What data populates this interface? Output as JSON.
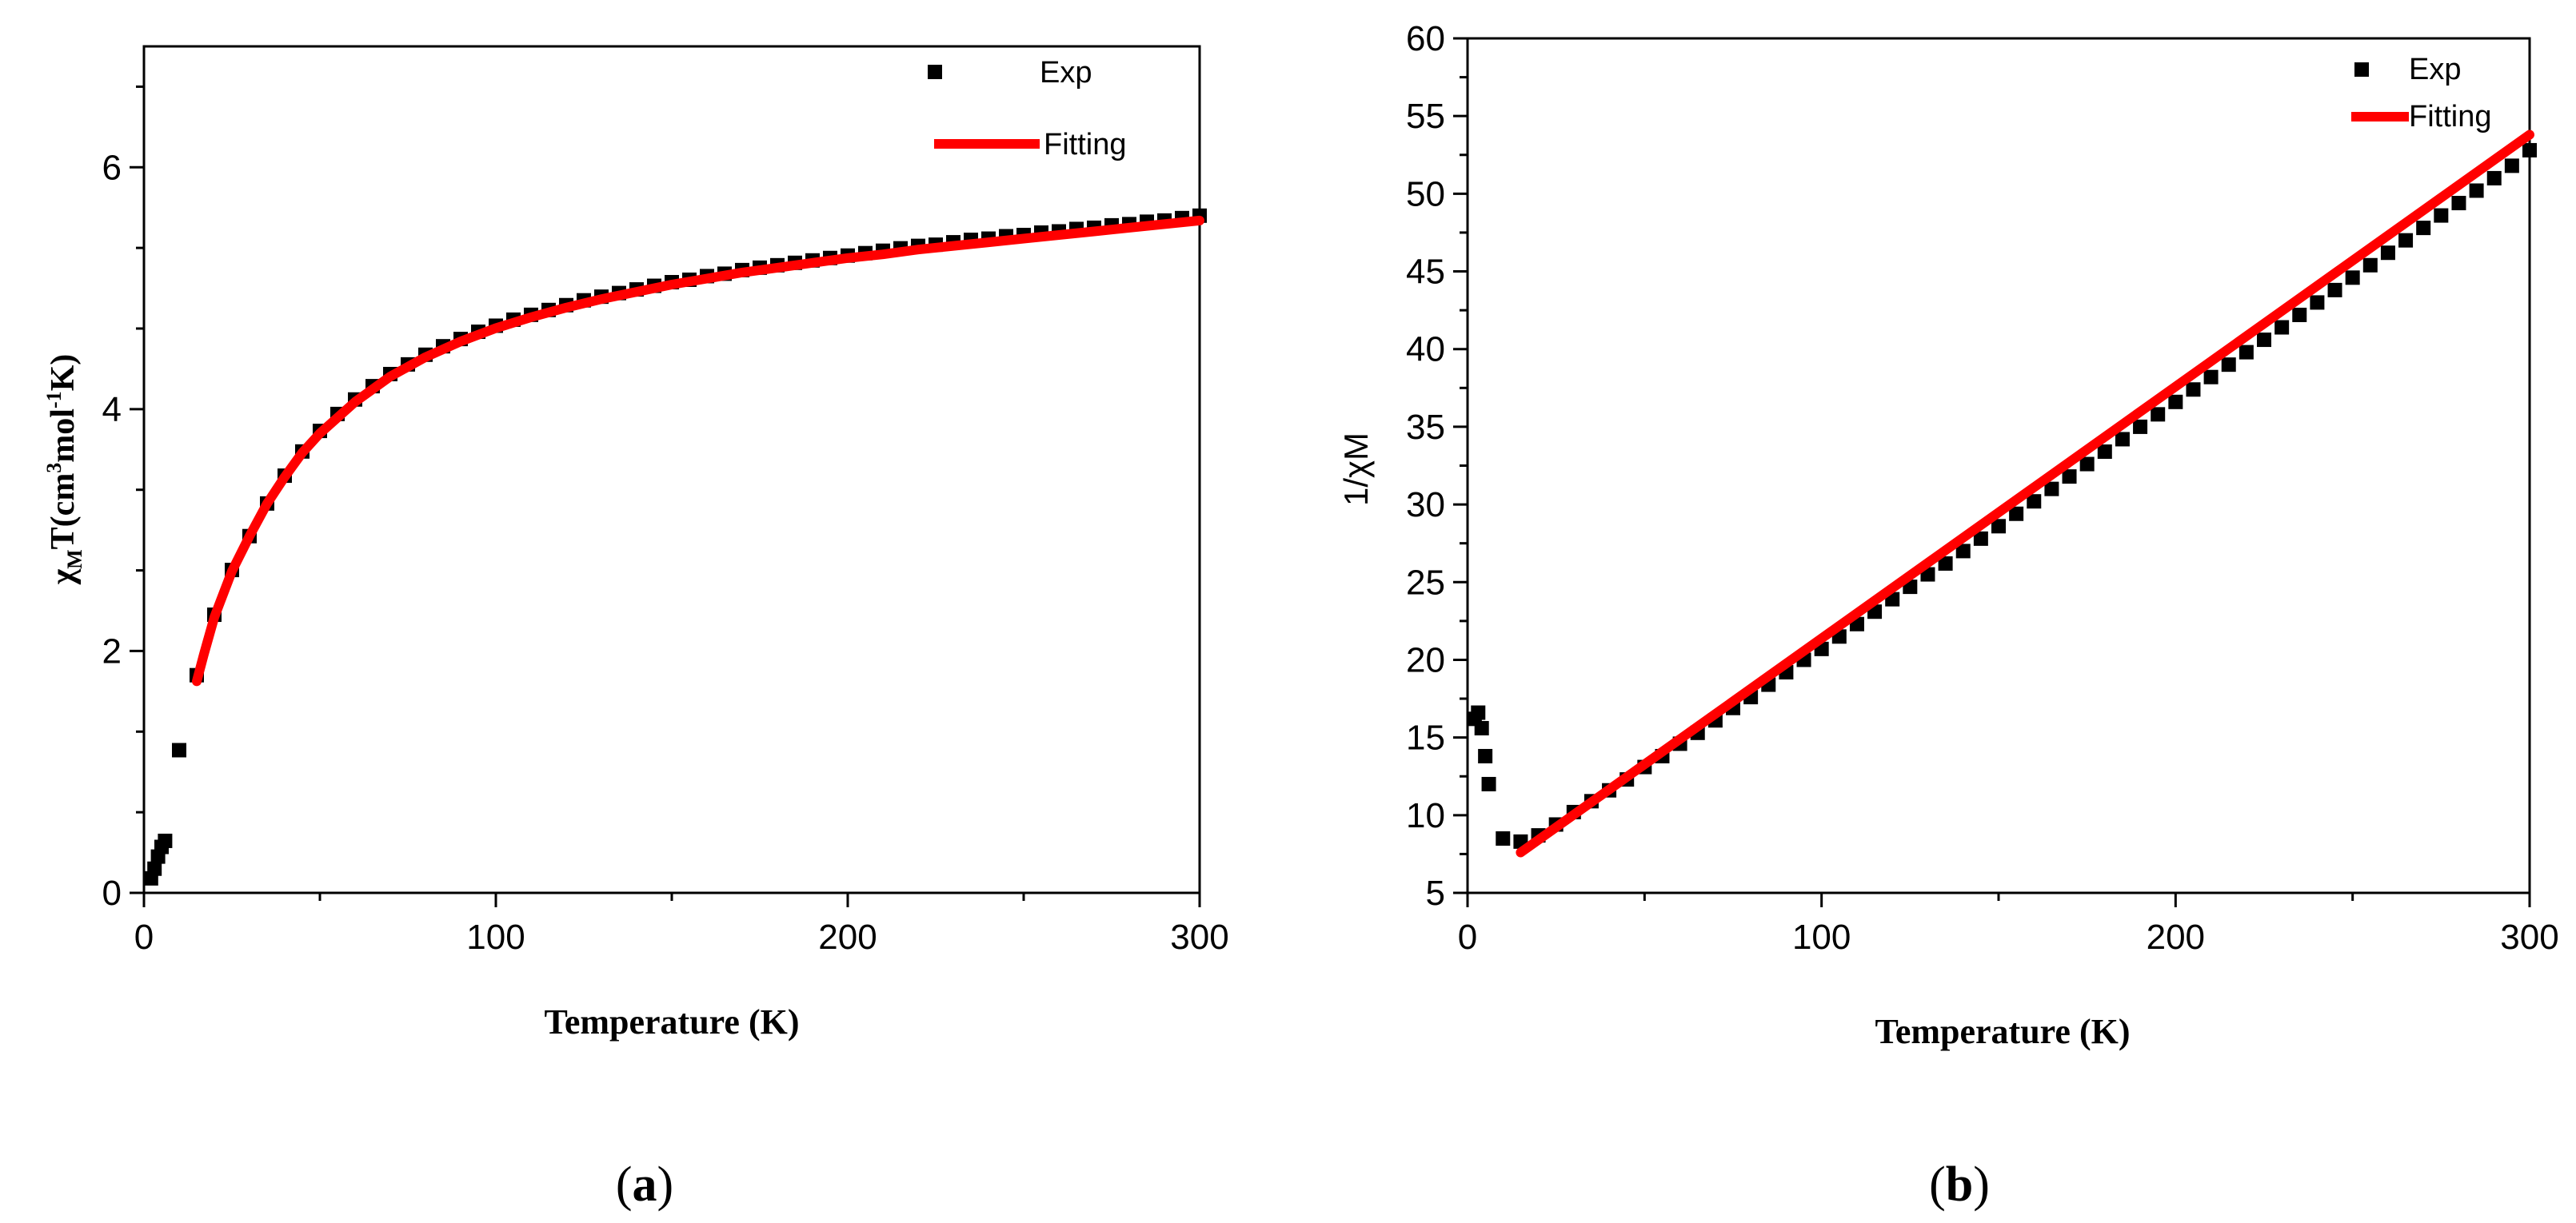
{
  "chart_data": [
    {
      "type": "scatter",
      "panel": "a",
      "caption_open": "(",
      "caption_letter": "a",
      "caption_close": ")",
      "xlabel": "Temperature (K)",
      "ylabel": "χMT(cm3mol-1K)",
      "ylabel_parts": {
        "chi": "χ",
        "sub": "M",
        "t": "T(cm",
        "sup1": "3",
        "mol": "mol",
        "sup2": "-1",
        "k": "K)"
      },
      "xlim": [
        0,
        300
      ],
      "ylim": [
        0,
        7
      ],
      "xticks": [
        0,
        100,
        200,
        300
      ],
      "yticks": [
        0,
        2,
        4,
        6
      ],
      "legend": [
        "Exp",
        "Fitting"
      ],
      "legend_position": "top-right",
      "series": [
        {
          "name": "Exp",
          "style": "square-markers",
          "x": [
            2,
            3,
            4,
            5,
            6,
            10,
            15,
            20,
            25,
            30,
            35,
            40,
            45,
            50,
            55,
            60,
            65,
            70,
            75,
            80,
            85,
            90,
            95,
            100,
            105,
            110,
            115,
            120,
            125,
            130,
            135,
            140,
            145,
            150,
            155,
            160,
            165,
            170,
            175,
            180,
            185,
            190,
            195,
            200,
            205,
            210,
            215,
            220,
            225,
            230,
            235,
            240,
            245,
            250,
            255,
            260,
            265,
            270,
            275,
            280,
            285,
            290,
            295,
            300
          ],
          "y": [
            0.12,
            0.2,
            0.3,
            0.38,
            0.43,
            1.18,
            1.8,
            2.3,
            2.67,
            2.95,
            3.22,
            3.45,
            3.65,
            3.82,
            3.96,
            4.08,
            4.19,
            4.29,
            4.37,
            4.45,
            4.52,
            4.58,
            4.64,
            4.69,
            4.74,
            4.78,
            4.82,
            4.86,
            4.9,
            4.93,
            4.96,
            4.99,
            5.02,
            5.05,
            5.07,
            5.1,
            5.12,
            5.15,
            5.17,
            5.19,
            5.21,
            5.23,
            5.25,
            5.27,
            5.29,
            5.31,
            5.33,
            5.35,
            5.36,
            5.38,
            5.4,
            5.41,
            5.43,
            5.44,
            5.46,
            5.47,
            5.49,
            5.5,
            5.52,
            5.53,
            5.55,
            5.56,
            5.58,
            5.6
          ]
        },
        {
          "name": "Fitting",
          "style": "line",
          "color": "#ff0000",
          "x": [
            15,
            17,
            20,
            25,
            30,
            35,
            40,
            45,
            50,
            60,
            70,
            80,
            90,
            100,
            110,
            120,
            130,
            140,
            150,
            160,
            170,
            180,
            190,
            200,
            210,
            220,
            230,
            240,
            250,
            260,
            270,
            280,
            290,
            300
          ],
          "y": [
            1.75,
            1.97,
            2.28,
            2.66,
            2.95,
            3.22,
            3.44,
            3.64,
            3.8,
            4.06,
            4.27,
            4.43,
            4.56,
            4.67,
            4.76,
            4.84,
            4.91,
            4.97,
            5.03,
            5.08,
            5.13,
            5.17,
            5.21,
            5.25,
            5.28,
            5.32,
            5.35,
            5.38,
            5.41,
            5.44,
            5.47,
            5.5,
            5.53,
            5.56
          ]
        }
      ]
    },
    {
      "type": "scatter",
      "panel": "b",
      "caption_open": "(",
      "caption_letter": "b",
      "caption_close": ")",
      "xlabel": "Temperature (K)",
      "ylabel": "1/χM",
      "xlim": [
        0,
        300
      ],
      "ylim": [
        5,
        60
      ],
      "xticks": [
        0,
        100,
        200,
        300
      ],
      "yticks": [
        5,
        10,
        15,
        20,
        25,
        30,
        35,
        40,
        45,
        50,
        55,
        60
      ],
      "legend": [
        "Exp",
        "Fitting"
      ],
      "legend_position": "top-right",
      "series": [
        {
          "name": "Exp",
          "style": "square-markers",
          "x": [
            2,
            3,
            4,
            5,
            6,
            10,
            15,
            20,
            25,
            30,
            35,
            40,
            45,
            50,
            55,
            60,
            65,
            70,
            75,
            80,
            85,
            90,
            95,
            100,
            105,
            110,
            115,
            120,
            125,
            130,
            135,
            140,
            145,
            150,
            155,
            160,
            165,
            170,
            175,
            180,
            185,
            190,
            195,
            200,
            205,
            210,
            215,
            220,
            225,
            230,
            235,
            240,
            245,
            250,
            255,
            260,
            265,
            270,
            275,
            280,
            285,
            290,
            295,
            300
          ],
          "y": [
            16.2,
            16.6,
            15.6,
            13.8,
            12.0,
            8.5,
            8.3,
            8.7,
            9.4,
            10.2,
            10.9,
            11.6,
            12.3,
            13.1,
            13.8,
            14.6,
            15.3,
            16.1,
            16.9,
            17.6,
            18.4,
            19.2,
            20.0,
            20.7,
            21.5,
            22.3,
            23.1,
            23.9,
            24.7,
            25.5,
            26.2,
            27.0,
            27.8,
            28.6,
            29.4,
            30.2,
            31.0,
            31.8,
            32.6,
            33.4,
            34.2,
            35.0,
            35.8,
            36.6,
            37.4,
            38.2,
            39.0,
            39.8,
            40.6,
            41.4,
            42.2,
            43.0,
            43.8,
            44.6,
            45.4,
            46.2,
            47.0,
            47.8,
            48.6,
            49.4,
            50.2,
            51.0,
            51.8,
            52.8
          ]
        },
        {
          "name": "Fitting",
          "style": "line",
          "color": "#ff0000",
          "x": [
            15,
            300
          ],
          "y": [
            7.6,
            53.8
          ]
        }
      ]
    }
  ]
}
